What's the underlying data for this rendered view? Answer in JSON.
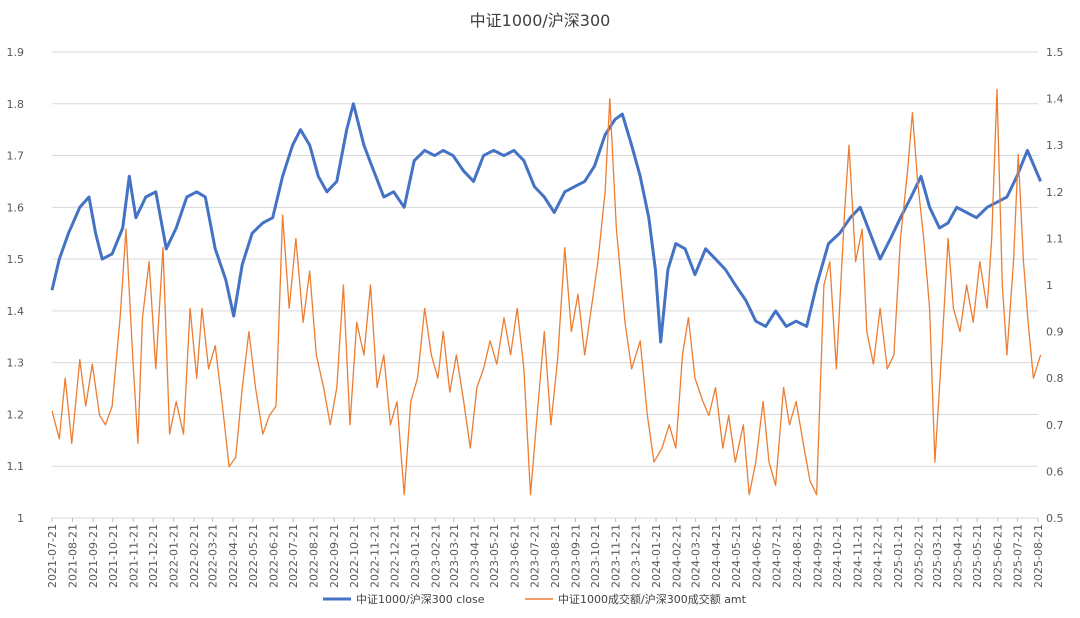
{
  "chart_data": {
    "type": "line",
    "title": "中证1000/沪深300",
    "grid": "horizontal",
    "legend_position": "bottom",
    "y_left": {
      "min": 1,
      "max": 1.9,
      "ticks": [
        "1",
        "1.1",
        "1.2",
        "1.3",
        "1.4",
        "1.5",
        "1.6",
        "1.7",
        "1.8",
        "1.9"
      ]
    },
    "y_right": {
      "min": 0.5,
      "max": 1.5,
      "ticks": [
        "0.5",
        "0.6",
        "0.7",
        "0.8",
        "0.9",
        "1",
        "1.1",
        "1.2",
        "1.3",
        "1.4",
        "1.5"
      ]
    },
    "x_ticks": [
      "2021-07-21",
      "2021-08-21",
      "2021-09-21",
      "2021-10-21",
      "2021-11-21",
      "2021-12-21",
      "2022-01-21",
      "2022-02-21",
      "2022-03-21",
      "2022-04-21",
      "2022-05-21",
      "2022-06-21",
      "2022-07-21",
      "2022-08-21",
      "2022-09-21",
      "2022-10-21",
      "2022-11-21",
      "2022-12-21",
      "2023-01-21",
      "2023-02-21",
      "2023-03-21",
      "2023-04-21",
      "2023-05-21",
      "2023-06-21",
      "2023-07-21",
      "2023-08-21",
      "2023-09-21",
      "2023-10-21",
      "2023-11-21",
      "2023-12-21",
      "2024-01-21",
      "2024-02-21",
      "2024-03-21",
      "2024-04-21",
      "2024-05-21",
      "2024-06-21",
      "2024-07-21",
      "2024-08-21",
      "2024-09-21",
      "2024-10-21",
      "2024-11-21",
      "2024-12-21",
      "2025-01-21",
      "2025-02-21",
      "2025-03-21",
      "2025-04-21",
      "2025-05-21",
      "2025-06-21",
      "2025-07-21",
      "2025-08-21"
    ],
    "series": [
      {
        "name": "中证1000/沪深300 close",
        "axis": "left",
        "color": "#4472C4",
        "points": [
          [
            "2021-07-21",
            1.44
          ],
          [
            "2021-08-01",
            1.5
          ],
          [
            "2021-08-15",
            1.55
          ],
          [
            "2021-09-01",
            1.6
          ],
          [
            "2021-09-15",
            1.62
          ],
          [
            "2021-09-25",
            1.55
          ],
          [
            "2021-10-05",
            1.5
          ],
          [
            "2021-10-20",
            1.51
          ],
          [
            "2021-11-05",
            1.56
          ],
          [
            "2021-11-15",
            1.66
          ],
          [
            "2021-11-25",
            1.58
          ],
          [
            "2021-12-10",
            1.62
          ],
          [
            "2021-12-25",
            1.63
          ],
          [
            "2022-01-10",
            1.52
          ],
          [
            "2022-01-25",
            1.56
          ],
          [
            "2022-02-10",
            1.62
          ],
          [
            "2022-02-25",
            1.63
          ],
          [
            "2022-03-10",
            1.62
          ],
          [
            "2022-03-25",
            1.52
          ],
          [
            "2022-04-10",
            1.46
          ],
          [
            "2022-04-22",
            1.39
          ],
          [
            "2022-05-05",
            1.49
          ],
          [
            "2022-05-20",
            1.55
          ],
          [
            "2022-06-05",
            1.57
          ],
          [
            "2022-06-20",
            1.58
          ],
          [
            "2022-07-05",
            1.66
          ],
          [
            "2022-07-20",
            1.72
          ],
          [
            "2022-08-01",
            1.75
          ],
          [
            "2022-08-15",
            1.72
          ],
          [
            "2022-08-28",
            1.66
          ],
          [
            "2022-09-10",
            1.63
          ],
          [
            "2022-09-25",
            1.65
          ],
          [
            "2022-10-10",
            1.75
          ],
          [
            "2022-10-20",
            1.8
          ],
          [
            "2022-11-05",
            1.72
          ],
          [
            "2022-11-20",
            1.67
          ],
          [
            "2022-12-05",
            1.62
          ],
          [
            "2022-12-20",
            1.63
          ],
          [
            "2023-01-05",
            1.6
          ],
          [
            "2023-01-20",
            1.69
          ],
          [
            "2023-02-05",
            1.71
          ],
          [
            "2023-02-20",
            1.7
          ],
          [
            "2023-03-05",
            1.71
          ],
          [
            "2023-03-20",
            1.7
          ],
          [
            "2023-04-05",
            1.67
          ],
          [
            "2023-04-20",
            1.65
          ],
          [
            "2023-05-05",
            1.7
          ],
          [
            "2023-05-20",
            1.71
          ],
          [
            "2023-06-05",
            1.7
          ],
          [
            "2023-06-20",
            1.71
          ],
          [
            "2023-07-05",
            1.69
          ],
          [
            "2023-07-21",
            1.64
          ],
          [
            "2023-08-05",
            1.62
          ],
          [
            "2023-08-20",
            1.59
          ],
          [
            "2023-09-05",
            1.63
          ],
          [
            "2023-09-20",
            1.64
          ],
          [
            "2023-10-05",
            1.65
          ],
          [
            "2023-10-20",
            1.68
          ],
          [
            "2023-11-05",
            1.74
          ],
          [
            "2023-11-20",
            1.77
          ],
          [
            "2023-12-01",
            1.78
          ],
          [
            "2023-12-15",
            1.72
          ],
          [
            "2023-12-28",
            1.66
          ],
          [
            "2024-01-10",
            1.58
          ],
          [
            "2024-01-20",
            1.48
          ],
          [
            "2024-01-28",
            1.34
          ],
          [
            "2024-02-08",
            1.48
          ],
          [
            "2024-02-20",
            1.53
          ],
          [
            "2024-03-05",
            1.52
          ],
          [
            "2024-03-20",
            1.47
          ],
          [
            "2024-04-05",
            1.52
          ],
          [
            "2024-04-20",
            1.5
          ],
          [
            "2024-05-05",
            1.48
          ],
          [
            "2024-05-20",
            1.45
          ],
          [
            "2024-06-05",
            1.42
          ],
          [
            "2024-06-20",
            1.38
          ],
          [
            "2024-07-05",
            1.37
          ],
          [
            "2024-07-20",
            1.4
          ],
          [
            "2024-08-05",
            1.37
          ],
          [
            "2024-08-20",
            1.38
          ],
          [
            "2024-09-05",
            1.37
          ],
          [
            "2024-09-20",
            1.45
          ],
          [
            "2024-10-08",
            1.53
          ],
          [
            "2024-10-25",
            1.55
          ],
          [
            "2024-11-10",
            1.58
          ],
          [
            "2024-11-25",
            1.6
          ],
          [
            "2024-12-10",
            1.55
          ],
          [
            "2024-12-25",
            1.5
          ],
          [
            "2025-01-10",
            1.54
          ],
          [
            "2025-01-25",
            1.58
          ],
          [
            "2025-02-10",
            1.62
          ],
          [
            "2025-02-25",
            1.66
          ],
          [
            "2025-03-10",
            1.6
          ],
          [
            "2025-03-25",
            1.56
          ],
          [
            "2025-04-07",
            1.57
          ],
          [
            "2025-04-20",
            1.6
          ],
          [
            "2025-05-05",
            1.59
          ],
          [
            "2025-05-20",
            1.58
          ],
          [
            "2025-06-05",
            1.6
          ],
          [
            "2025-06-20",
            1.61
          ],
          [
            "2025-07-05",
            1.62
          ],
          [
            "2025-07-20",
            1.66
          ],
          [
            "2025-08-05",
            1.71
          ],
          [
            "2025-08-15",
            1.68
          ],
          [
            "2025-08-25",
            1.65
          ]
        ]
      },
      {
        "name": "中证1000成交额/沪深300成交额 amt",
        "axis": "right",
        "color": "#ED7D31",
        "points": [
          [
            "2021-07-21",
            0.73
          ],
          [
            "2021-08-01",
            0.67
          ],
          [
            "2021-08-10",
            0.8
          ],
          [
            "2021-08-20",
            0.66
          ],
          [
            "2021-09-01",
            0.84
          ],
          [
            "2021-09-10",
            0.74
          ],
          [
            "2021-09-20",
            0.83
          ],
          [
            "2021-10-01",
            0.72
          ],
          [
            "2021-10-10",
            0.7
          ],
          [
            "2021-10-20",
            0.74
          ],
          [
            "2021-11-01",
            0.93
          ],
          [
            "2021-11-10",
            1.12
          ],
          [
            "2021-11-20",
            0.85
          ],
          [
            "2021-11-28",
            0.66
          ],
          [
            "2021-12-05",
            0.93
          ],
          [
            "2021-12-15",
            1.05
          ],
          [
            "2021-12-25",
            0.82
          ],
          [
            "2022-01-05",
            1.08
          ],
          [
            "2022-01-15",
            0.68
          ],
          [
            "2022-01-25",
            0.75
          ],
          [
            "2022-02-05",
            0.68
          ],
          [
            "2022-02-15",
            0.95
          ],
          [
            "2022-02-25",
            0.8
          ],
          [
            "2022-03-05",
            0.95
          ],
          [
            "2022-03-15",
            0.82
          ],
          [
            "2022-03-25",
            0.87
          ],
          [
            "2022-04-05",
            0.74
          ],
          [
            "2022-04-15",
            0.61
          ],
          [
            "2022-04-25",
            0.63
          ],
          [
            "2022-05-05",
            0.78
          ],
          [
            "2022-05-15",
            0.9
          ],
          [
            "2022-05-25",
            0.78
          ],
          [
            "2022-06-05",
            0.68
          ],
          [
            "2022-06-15",
            0.72
          ],
          [
            "2022-06-25",
            0.74
          ],
          [
            "2022-07-05",
            1.15
          ],
          [
            "2022-07-15",
            0.95
          ],
          [
            "2022-07-25",
            1.1
          ],
          [
            "2022-08-05",
            0.92
          ],
          [
            "2022-08-15",
            1.03
          ],
          [
            "2022-08-25",
            0.85
          ],
          [
            "2022-09-05",
            0.78
          ],
          [
            "2022-09-15",
            0.7
          ],
          [
            "2022-09-25",
            0.78
          ],
          [
            "2022-10-05",
            1.0
          ],
          [
            "2022-10-15",
            0.7
          ],
          [
            "2022-10-25",
            0.92
          ],
          [
            "2022-11-05",
            0.85
          ],
          [
            "2022-11-15",
            1.0
          ],
          [
            "2022-11-25",
            0.78
          ],
          [
            "2022-12-05",
            0.85
          ],
          [
            "2022-12-15",
            0.7
          ],
          [
            "2022-12-25",
            0.75
          ],
          [
            "2023-01-05",
            0.55
          ],
          [
            "2023-01-15",
            0.75
          ],
          [
            "2023-01-25",
            0.8
          ],
          [
            "2023-02-05",
            0.95
          ],
          [
            "2023-02-15",
            0.85
          ],
          [
            "2023-02-25",
            0.8
          ],
          [
            "2023-03-05",
            0.9
          ],
          [
            "2023-03-15",
            0.77
          ],
          [
            "2023-03-25",
            0.85
          ],
          [
            "2023-04-05",
            0.75
          ],
          [
            "2023-04-15",
            0.65
          ],
          [
            "2023-04-25",
            0.78
          ],
          [
            "2023-05-05",
            0.82
          ],
          [
            "2023-05-15",
            0.88
          ],
          [
            "2023-05-25",
            0.83
          ],
          [
            "2023-06-05",
            0.93
          ],
          [
            "2023-06-15",
            0.85
          ],
          [
            "2023-06-25",
            0.95
          ],
          [
            "2023-07-05",
            0.82
          ],
          [
            "2023-07-15",
            0.55
          ],
          [
            "2023-07-25",
            0.72
          ],
          [
            "2023-08-05",
            0.9
          ],
          [
            "2023-08-15",
            0.7
          ],
          [
            "2023-08-25",
            0.84
          ],
          [
            "2023-09-05",
            1.08
          ],
          [
            "2023-09-15",
            0.9
          ],
          [
            "2023-09-25",
            0.98
          ],
          [
            "2023-10-05",
            0.85
          ],
          [
            "2023-10-15",
            0.95
          ],
          [
            "2023-10-25",
            1.05
          ],
          [
            "2023-11-05",
            1.2
          ],
          [
            "2023-11-12",
            1.4
          ],
          [
            "2023-11-22",
            1.12
          ],
          [
            "2023-12-05",
            0.92
          ],
          [
            "2023-12-15",
            0.82
          ],
          [
            "2023-12-28",
            0.88
          ],
          [
            "2024-01-08",
            0.72
          ],
          [
            "2024-01-18",
            0.62
          ],
          [
            "2024-01-30",
            0.65
          ],
          [
            "2024-02-10",
            0.7
          ],
          [
            "2024-02-20",
            0.65
          ],
          [
            "2024-03-01",
            0.85
          ],
          [
            "2024-03-10",
            0.93
          ],
          [
            "2024-03-20",
            0.8
          ],
          [
            "2024-04-01",
            0.75
          ],
          [
            "2024-04-10",
            0.72
          ],
          [
            "2024-04-20",
            0.78
          ],
          [
            "2024-05-01",
            0.65
          ],
          [
            "2024-05-10",
            0.72
          ],
          [
            "2024-05-20",
            0.62
          ],
          [
            "2024-06-01",
            0.7
          ],
          [
            "2024-06-10",
            0.55
          ],
          [
            "2024-06-20",
            0.62
          ],
          [
            "2024-07-01",
            0.75
          ],
          [
            "2024-07-10",
            0.62
          ],
          [
            "2024-07-20",
            0.57
          ],
          [
            "2024-08-01",
            0.78
          ],
          [
            "2024-08-10",
            0.7
          ],
          [
            "2024-08-20",
            0.75
          ],
          [
            "2024-09-01",
            0.65
          ],
          [
            "2024-09-10",
            0.58
          ],
          [
            "2024-09-20",
            0.55
          ],
          [
            "2024-10-01",
            1.0
          ],
          [
            "2024-10-10",
            1.05
          ],
          [
            "2024-10-20",
            0.82
          ],
          [
            "2024-11-01",
            1.15
          ],
          [
            "2024-11-08",
            1.3
          ],
          [
            "2024-11-18",
            1.05
          ],
          [
            "2024-11-28",
            1.12
          ],
          [
            "2024-12-05",
            0.9
          ],
          [
            "2024-12-15",
            0.83
          ],
          [
            "2024-12-25",
            0.95
          ],
          [
            "2025-01-05",
            0.82
          ],
          [
            "2025-01-15",
            0.85
          ],
          [
            "2025-01-25",
            1.1
          ],
          [
            "2025-02-05",
            1.25
          ],
          [
            "2025-02-12",
            1.37
          ],
          [
            "2025-02-20",
            1.22
          ],
          [
            "2025-03-01",
            1.1
          ],
          [
            "2025-03-10",
            0.95
          ],
          [
            "2025-03-18",
            0.62
          ],
          [
            "2025-03-28",
            0.85
          ],
          [
            "2025-04-07",
            1.1
          ],
          [
            "2025-04-15",
            0.95
          ],
          [
            "2025-04-25",
            0.9
          ],
          [
            "2025-05-05",
            1.0
          ],
          [
            "2025-05-15",
            0.92
          ],
          [
            "2025-05-25",
            1.05
          ],
          [
            "2025-06-05",
            0.95
          ],
          [
            "2025-06-12",
            1.1
          ],
          [
            "2025-06-20",
            1.42
          ],
          [
            "2025-06-28",
            1.0
          ],
          [
            "2025-07-05",
            0.85
          ],
          [
            "2025-07-15",
            1.05
          ],
          [
            "2025-07-22",
            1.28
          ],
          [
            "2025-07-30",
            1.05
          ],
          [
            "2025-08-06",
            0.92
          ],
          [
            "2025-08-14",
            0.8
          ],
          [
            "2025-08-25",
            0.85
          ]
        ]
      }
    ]
  }
}
